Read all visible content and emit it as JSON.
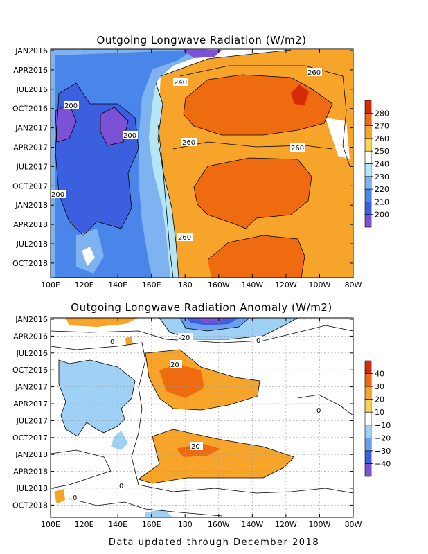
{
  "chart_data": [
    {
      "type": "heatmap",
      "title": "Outgoing Longwave Radiation (W/m2)",
      "x_ticks": [
        "100E",
        "120E",
        "140E",
        "160E",
        "180",
        "160W",
        "140W",
        "120W",
        "100W",
        "80W"
      ],
      "y_ticks": [
        "JAN2016",
        "APR2016",
        "JUL2016",
        "OCT2016",
        "JAN2017",
        "APR2017",
        "JUL2017",
        "OCT2017",
        "JAN2018",
        "APR2018",
        "JUL2018",
        "OCT2018"
      ],
      "colorbar": {
        "labels": [
          "200",
          "210",
          "220",
          "230",
          "240",
          "250",
          "260",
          "270",
          "280"
        ],
        "colors": [
          "#7b52d6",
          "#3c5fe0",
          "#4a86ea",
          "#7fb2f0",
          "#b6e6f5",
          "#ffffff",
          "#fbd44f",
          "#f7a42a",
          "#ee6b10",
          "#d62a0a"
        ]
      },
      "contour_labels": [
        "200",
        "200",
        "200",
        "240",
        "260",
        "260",
        "260",
        "260"
      ]
    },
    {
      "type": "heatmap",
      "title": "Outgoing Longwave Radiation Anomaly (W/m2)",
      "x_ticks": [
        "100E",
        "120E",
        "140E",
        "160E",
        "180",
        "160W",
        "140W",
        "120W",
        "100W",
        "80W"
      ],
      "y_ticks": [
        "JAN2016",
        "APR2016",
        "JUL2016",
        "OCT2016",
        "JAN2017",
        "APR2017",
        "JUL2017",
        "OCT2017",
        "JAN2018",
        "APR2018",
        "JUL2018",
        "OCT2018"
      ],
      "colorbar": {
        "labels": [
          "40",
          "30",
          "20",
          "10",
          "−10",
          "−20",
          "−30",
          "−40"
        ],
        "colors": [
          "#d62a0a",
          "#ee6b10",
          "#f7a42a",
          "#fbd44f",
          "#ffffff",
          "#9fd0f5",
          "#6aa0ee",
          "#3c5fe0",
          "#7b52d6"
        ]
      },
      "contour_labels": [
        "-20",
        "0",
        "0",
        "20",
        "20",
        "0",
        "0",
        "0"
      ]
    }
  ],
  "footer": "Data updated through December 2018"
}
